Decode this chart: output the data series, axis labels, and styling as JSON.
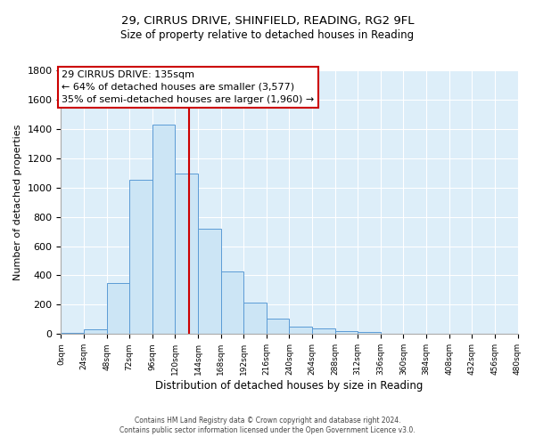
{
  "title_line1": "29, CIRRUS DRIVE, SHINFIELD, READING, RG2 9FL",
  "title_line2": "Size of property relative to detached houses in Reading",
  "xlabel": "Distribution of detached houses by size in Reading",
  "ylabel": "Number of detached properties",
  "bin_edges": [
    0,
    24,
    48,
    72,
    96,
    120,
    144,
    168,
    192,
    216,
    240,
    264,
    288,
    312,
    336,
    360,
    384,
    408,
    432,
    456,
    480
  ],
  "bin_counts": [
    10,
    30,
    350,
    1050,
    1430,
    1095,
    720,
    430,
    215,
    105,
    50,
    40,
    20,
    12,
    5,
    2,
    1,
    1,
    0,
    0
  ],
  "bar_color": "#cce5f5",
  "bar_edge_color": "#5b9bd5",
  "vline_x": 135,
  "vline_color": "#cc0000",
  "ylim": [
    0,
    1800
  ],
  "annotation_text_line1": "29 CIRRUS DRIVE: 135sqm",
  "annotation_text_line2": "← 64% of detached houses are smaller (3,577)",
  "annotation_text_line3": "35% of semi-detached houses are larger (1,960) →",
  "tick_labels": [
    "0sqm",
    "24sqm",
    "48sqm",
    "72sqm",
    "96sqm",
    "120sqm",
    "144sqm",
    "168sqm",
    "192sqm",
    "216sqm",
    "240sqm",
    "264sqm",
    "288sqm",
    "312sqm",
    "336sqm",
    "360sqm",
    "384sqm",
    "408sqm",
    "432sqm",
    "456sqm",
    "480sqm"
  ],
  "footnote1": "Contains HM Land Registry data © Crown copyright and database right 2024.",
  "footnote2": "Contains public sector information licensed under the Open Government Licence v3.0.",
  "background_color": "#ddeef9",
  "grid_color": "#ffffff",
  "title1_fontsize": 9.5,
  "title2_fontsize": 8.5,
  "ylabel_fontsize": 8,
  "xlabel_fontsize": 8.5,
  "tick_fontsize": 6.5,
  "annot_fontsize": 8,
  "footnote_fontsize": 5.5
}
